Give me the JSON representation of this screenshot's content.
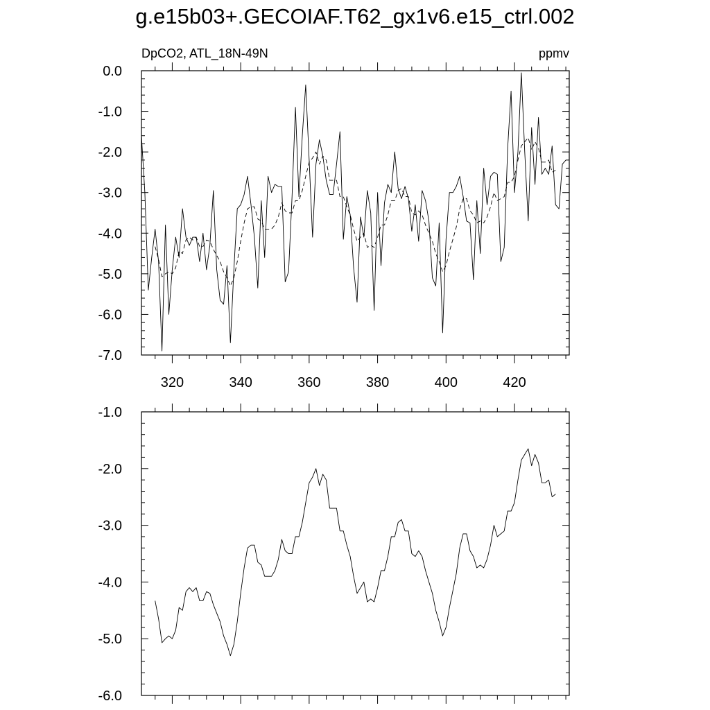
{
  "title": "g.e15b03+.GECOIAF.T62_gx1v6.e15_ctrl.002",
  "chart_data": [
    {
      "type": "line",
      "left_label": "DpCO2, ATL_18N-49N",
      "right_label": "ppmv",
      "xlim": [
        311,
        436
      ],
      "ylim": [
        -7.0,
        0.0
      ],
      "xticks": [
        320,
        340,
        360,
        380,
        400,
        420
      ],
      "xtick_labels": [
        "320",
        "340",
        "360",
        "380",
        "400",
        "420"
      ],
      "yticks": [
        0.0,
        -1.0,
        -2.0,
        -3.0,
        -4.0,
        -5.0,
        -6.0,
        -7.0
      ],
      "ytick_labels": [
        "0.0",
        "-1.0",
        "-2.0",
        "-3.0",
        "-4.0",
        "-5.0",
        "-6.0",
        "-7.0"
      ],
      "series": [
        {
          "style": "solid",
          "x": [
            311,
            312,
            313,
            314,
            315,
            316,
            317,
            318,
            319,
            320,
            321,
            322,
            323,
            324,
            325,
            326,
            327,
            328,
            329,
            330,
            331,
            332,
            333,
            334,
            335,
            336,
            337,
            338,
            339,
            340,
            341,
            342,
            343,
            344,
            345,
            346,
            347,
            348,
            349,
            350,
            351,
            352,
            353,
            354,
            355,
            356,
            357,
            358,
            359,
            360,
            361,
            362,
            363,
            364,
            365,
            366,
            367,
            368,
            369,
            370,
            371,
            372,
            373,
            374,
            375,
            376,
            377,
            378,
            379,
            380,
            381,
            382,
            383,
            384,
            385,
            386,
            387,
            388,
            389,
            390,
            391,
            392,
            393,
            394,
            395,
            396,
            397,
            398,
            399,
            400,
            401,
            402,
            403,
            404,
            405,
            406,
            407,
            408,
            409,
            410,
            411,
            412,
            413,
            414,
            415,
            416,
            417,
            418,
            419,
            420,
            421,
            422,
            423,
            424,
            425,
            426,
            427,
            428,
            429,
            430,
            431,
            432,
            433,
            434,
            435
          ],
          "y": [
            -1.6,
            -3.0,
            -5.4,
            -4.6,
            -3.9,
            -4.7,
            -6.9,
            -3.8,
            -6.0,
            -4.9,
            -4.1,
            -4.6,
            -3.4,
            -4.1,
            -4.3,
            -4.1,
            -4.1,
            -4.7,
            -4.0,
            -4.9,
            -4.3,
            -2.95,
            -4.9,
            -5.65,
            -5.75,
            -4.8,
            -6.7,
            -4.9,
            -3.4,
            -3.3,
            -3.05,
            -2.6,
            -3.3,
            -4.1,
            -5.35,
            -3.2,
            -4.6,
            -2.6,
            -3.0,
            -2.8,
            -2.85,
            -2.85,
            -5.2,
            -4.95,
            -3.1,
            -0.9,
            -3.1,
            -1.6,
            -0.35,
            -2.2,
            -4.1,
            -2.3,
            -1.7,
            -2.1,
            -2.7,
            -3.05,
            -3.05,
            -2.3,
            -1.5,
            -4.15,
            -3.1,
            -3.55,
            -4.85,
            -5.7,
            -3.6,
            -4.1,
            -2.95,
            -3.5,
            -5.9,
            -3.0,
            -4.8,
            -3.25,
            -2.8,
            -3.0,
            -2.0,
            -2.9,
            -3.15,
            -2.85,
            -3.15,
            -3.95,
            -3.3,
            -4.2,
            -2.95,
            -3.2,
            -3.7,
            -5.1,
            -5.3,
            -3.75,
            -6.45,
            -4.15,
            -3.0,
            -3.0,
            -2.85,
            -2.6,
            -3.1,
            -3.7,
            -3.75,
            -5.15,
            -3.2,
            -4.5,
            -2.4,
            -3.3,
            -2.6,
            -2.5,
            -2.55,
            -4.7,
            -4.35,
            -1.9,
            -0.5,
            -3.0,
            -2.0,
            -0.05,
            -2.0,
            -3.7,
            -1.4,
            -2.8,
            -1.15,
            -2.55,
            -2.4,
            -2.55,
            -1.85,
            -3.3,
            -3.4,
            -2.3,
            -2.2
          ]
        },
        {
          "style": "dashed",
          "x": [
            315,
            316,
            317,
            318,
            319,
            320,
            321,
            322,
            323,
            324,
            325,
            326,
            327,
            328,
            329,
            330,
            331,
            332,
            333,
            334,
            335,
            336,
            337,
            338,
            339,
            340,
            341,
            342,
            343,
            344,
            345,
            346,
            347,
            348,
            349,
            350,
            351,
            352,
            353,
            354,
            355,
            356,
            357,
            358,
            359,
            360,
            361,
            362,
            363,
            364,
            365,
            366,
            367,
            368,
            369,
            370,
            371,
            372,
            373,
            374,
            375,
            376,
            377,
            378,
            379,
            380,
            381,
            382,
            383,
            384,
            385,
            386,
            387,
            388,
            389,
            390,
            391,
            392,
            393,
            394,
            395,
            396,
            397,
            398,
            399,
            400,
            401,
            402,
            403,
            404,
            405,
            406,
            407,
            408,
            409,
            410,
            411,
            412,
            413,
            414,
            415,
            416,
            417,
            418,
            419,
            420,
            421,
            422,
            423,
            424,
            425,
            426,
            427,
            428,
            429,
            430,
            431,
            432
          ],
          "y": [
            -4.33,
            -4.65,
            -5.07,
            -5.0,
            -4.95,
            -5.0,
            -4.85,
            -4.45,
            -4.5,
            -4.17,
            -4.1,
            -4.17,
            -4.1,
            -4.33,
            -4.33,
            -4.17,
            -4.2,
            -4.4,
            -4.55,
            -4.7,
            -4.95,
            -5.1,
            -5.3,
            -5.1,
            -4.7,
            -4.2,
            -3.75,
            -3.4,
            -3.35,
            -3.35,
            -3.65,
            -3.7,
            -3.9,
            -3.9,
            -3.9,
            -3.8,
            -3.6,
            -3.25,
            -3.45,
            -3.5,
            -3.5,
            -3.2,
            -3.2,
            -2.95,
            -2.6,
            -2.25,
            -2.15,
            -2.0,
            -2.3,
            -2.1,
            -2.2,
            -2.7,
            -2.7,
            -2.7,
            -3.1,
            -3.1,
            -3.35,
            -3.55,
            -3.9,
            -4.2,
            -4.1,
            -4.0,
            -4.35,
            -4.3,
            -4.35,
            -4.1,
            -3.8,
            -3.8,
            -3.55,
            -3.2,
            -3.2,
            -2.95,
            -2.9,
            -3.1,
            -3.1,
            -3.5,
            -3.55,
            -3.45,
            -3.55,
            -3.8,
            -4.0,
            -4.2,
            -4.5,
            -4.7,
            -4.95,
            -4.8,
            -4.45,
            -4.15,
            -3.85,
            -3.4,
            -3.15,
            -3.15,
            -3.45,
            -3.55,
            -3.75,
            -3.7,
            -3.75,
            -3.6,
            -3.35,
            -3.0,
            -3.2,
            -3.15,
            -3.1,
            -2.75,
            -2.75,
            -2.6,
            -2.2,
            -1.85,
            -1.75,
            -1.65,
            -1.95,
            -1.75,
            -1.9,
            -2.25,
            -2.25,
            -2.2,
            -2.5,
            -2.45
          ]
        }
      ]
    },
    {
      "type": "line",
      "xlim": [
        311,
        436
      ],
      "ylim": [
        -6.0,
        -1.0
      ],
      "xticks": [
        320,
        340,
        360,
        380,
        400,
        420
      ],
      "yticks": [
        -1.0,
        -2.0,
        -3.0,
        -4.0,
        -5.0,
        -6.0
      ],
      "ytick_labels": [
        "-1.0",
        "-2.0",
        "-3.0",
        "-4.0",
        "-5.0",
        "-6.0"
      ],
      "series": [
        {
          "style": "solid",
          "x": [
            315,
            316,
            317,
            318,
            319,
            320,
            321,
            322,
            323,
            324,
            325,
            326,
            327,
            328,
            329,
            330,
            331,
            332,
            333,
            334,
            335,
            336,
            337,
            338,
            339,
            340,
            341,
            342,
            343,
            344,
            345,
            346,
            347,
            348,
            349,
            350,
            351,
            352,
            353,
            354,
            355,
            356,
            357,
            358,
            359,
            360,
            361,
            362,
            363,
            364,
            365,
            366,
            367,
            368,
            369,
            370,
            371,
            372,
            373,
            374,
            375,
            376,
            377,
            378,
            379,
            380,
            381,
            382,
            383,
            384,
            385,
            386,
            387,
            388,
            389,
            390,
            391,
            392,
            393,
            394,
            395,
            396,
            397,
            398,
            399,
            400,
            401,
            402,
            403,
            404,
            405,
            406,
            407,
            408,
            409,
            410,
            411,
            412,
            413,
            414,
            415,
            416,
            417,
            418,
            419,
            420,
            421,
            422,
            423,
            424,
            425,
            426,
            427,
            428,
            429,
            430,
            431,
            432
          ],
          "y": [
            -4.33,
            -4.65,
            -5.07,
            -5.0,
            -4.95,
            -5.0,
            -4.85,
            -4.45,
            -4.5,
            -4.17,
            -4.1,
            -4.17,
            -4.1,
            -4.33,
            -4.33,
            -4.17,
            -4.2,
            -4.4,
            -4.55,
            -4.7,
            -4.95,
            -5.1,
            -5.3,
            -5.1,
            -4.7,
            -4.2,
            -3.75,
            -3.4,
            -3.35,
            -3.35,
            -3.65,
            -3.7,
            -3.9,
            -3.9,
            -3.9,
            -3.8,
            -3.6,
            -3.25,
            -3.45,
            -3.5,
            -3.5,
            -3.2,
            -3.2,
            -2.95,
            -2.6,
            -2.25,
            -2.15,
            -2.0,
            -2.3,
            -2.1,
            -2.2,
            -2.7,
            -2.7,
            -2.7,
            -3.1,
            -3.1,
            -3.35,
            -3.55,
            -3.9,
            -4.2,
            -4.1,
            -4.0,
            -4.35,
            -4.3,
            -4.35,
            -4.1,
            -3.8,
            -3.8,
            -3.55,
            -3.2,
            -3.2,
            -2.95,
            -2.9,
            -3.1,
            -3.1,
            -3.5,
            -3.55,
            -3.45,
            -3.55,
            -3.8,
            -4.0,
            -4.2,
            -4.5,
            -4.7,
            -4.95,
            -4.8,
            -4.45,
            -4.15,
            -3.85,
            -3.4,
            -3.15,
            -3.15,
            -3.45,
            -3.55,
            -3.75,
            -3.7,
            -3.75,
            -3.6,
            -3.35,
            -3.0,
            -3.2,
            -3.15,
            -3.1,
            -2.75,
            -2.75,
            -2.6,
            -2.2,
            -1.85,
            -1.75,
            -1.65,
            -1.95,
            -1.75,
            -1.9,
            -2.25,
            -2.25,
            -2.2,
            -2.5,
            -2.45
          ]
        }
      ]
    }
  ]
}
